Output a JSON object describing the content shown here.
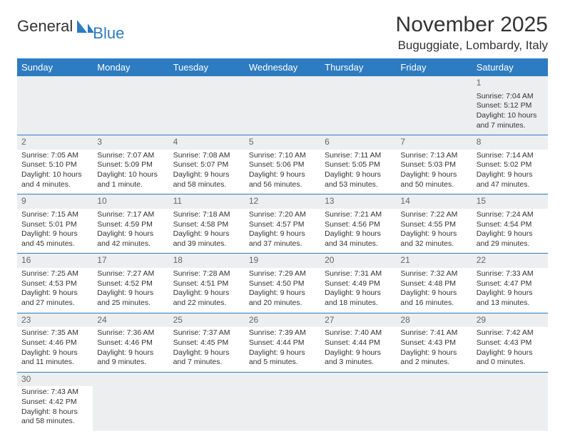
{
  "brand": {
    "part1": "General",
    "part2": "Blue"
  },
  "title": "November 2025",
  "location": "Buguggiate, Lombardy, Italy",
  "colors": {
    "header_bg": "#2d7bc0",
    "header_fg": "#ffffff",
    "rule": "#2d7bc0",
    "daynum_bg": "#eceef0",
    "text": "#333333"
  },
  "weekdays": [
    "Sunday",
    "Monday",
    "Tuesday",
    "Wednesday",
    "Thursday",
    "Friday",
    "Saturday"
  ],
  "grid": [
    [
      null,
      null,
      null,
      null,
      null,
      null,
      {
        "n": "1",
        "sunrise": "Sunrise: 7:04 AM",
        "sunset": "Sunset: 5:12 PM",
        "day1": "Daylight: 10 hours",
        "day2": "and 7 minutes."
      }
    ],
    [
      {
        "n": "2",
        "sunrise": "Sunrise: 7:05 AM",
        "sunset": "Sunset: 5:10 PM",
        "day1": "Daylight: 10 hours",
        "day2": "and 4 minutes."
      },
      {
        "n": "3",
        "sunrise": "Sunrise: 7:07 AM",
        "sunset": "Sunset: 5:09 PM",
        "day1": "Daylight: 10 hours",
        "day2": "and 1 minute."
      },
      {
        "n": "4",
        "sunrise": "Sunrise: 7:08 AM",
        "sunset": "Sunset: 5:07 PM",
        "day1": "Daylight: 9 hours",
        "day2": "and 58 minutes."
      },
      {
        "n": "5",
        "sunrise": "Sunrise: 7:10 AM",
        "sunset": "Sunset: 5:06 PM",
        "day1": "Daylight: 9 hours",
        "day2": "and 56 minutes."
      },
      {
        "n": "6",
        "sunrise": "Sunrise: 7:11 AM",
        "sunset": "Sunset: 5:05 PM",
        "day1": "Daylight: 9 hours",
        "day2": "and 53 minutes."
      },
      {
        "n": "7",
        "sunrise": "Sunrise: 7:13 AM",
        "sunset": "Sunset: 5:03 PM",
        "day1": "Daylight: 9 hours",
        "day2": "and 50 minutes."
      },
      {
        "n": "8",
        "sunrise": "Sunrise: 7:14 AM",
        "sunset": "Sunset: 5:02 PM",
        "day1": "Daylight: 9 hours",
        "day2": "and 47 minutes."
      }
    ],
    [
      {
        "n": "9",
        "sunrise": "Sunrise: 7:15 AM",
        "sunset": "Sunset: 5:01 PM",
        "day1": "Daylight: 9 hours",
        "day2": "and 45 minutes."
      },
      {
        "n": "10",
        "sunrise": "Sunrise: 7:17 AM",
        "sunset": "Sunset: 4:59 PM",
        "day1": "Daylight: 9 hours",
        "day2": "and 42 minutes."
      },
      {
        "n": "11",
        "sunrise": "Sunrise: 7:18 AM",
        "sunset": "Sunset: 4:58 PM",
        "day1": "Daylight: 9 hours",
        "day2": "and 39 minutes."
      },
      {
        "n": "12",
        "sunrise": "Sunrise: 7:20 AM",
        "sunset": "Sunset: 4:57 PM",
        "day1": "Daylight: 9 hours",
        "day2": "and 37 minutes."
      },
      {
        "n": "13",
        "sunrise": "Sunrise: 7:21 AM",
        "sunset": "Sunset: 4:56 PM",
        "day1": "Daylight: 9 hours",
        "day2": "and 34 minutes."
      },
      {
        "n": "14",
        "sunrise": "Sunrise: 7:22 AM",
        "sunset": "Sunset: 4:55 PM",
        "day1": "Daylight: 9 hours",
        "day2": "and 32 minutes."
      },
      {
        "n": "15",
        "sunrise": "Sunrise: 7:24 AM",
        "sunset": "Sunset: 4:54 PM",
        "day1": "Daylight: 9 hours",
        "day2": "and 29 minutes."
      }
    ],
    [
      {
        "n": "16",
        "sunrise": "Sunrise: 7:25 AM",
        "sunset": "Sunset: 4:53 PM",
        "day1": "Daylight: 9 hours",
        "day2": "and 27 minutes."
      },
      {
        "n": "17",
        "sunrise": "Sunrise: 7:27 AM",
        "sunset": "Sunset: 4:52 PM",
        "day1": "Daylight: 9 hours",
        "day2": "and 25 minutes."
      },
      {
        "n": "18",
        "sunrise": "Sunrise: 7:28 AM",
        "sunset": "Sunset: 4:51 PM",
        "day1": "Daylight: 9 hours",
        "day2": "and 22 minutes."
      },
      {
        "n": "19",
        "sunrise": "Sunrise: 7:29 AM",
        "sunset": "Sunset: 4:50 PM",
        "day1": "Daylight: 9 hours",
        "day2": "and 20 minutes."
      },
      {
        "n": "20",
        "sunrise": "Sunrise: 7:31 AM",
        "sunset": "Sunset: 4:49 PM",
        "day1": "Daylight: 9 hours",
        "day2": "and 18 minutes."
      },
      {
        "n": "21",
        "sunrise": "Sunrise: 7:32 AM",
        "sunset": "Sunset: 4:48 PM",
        "day1": "Daylight: 9 hours",
        "day2": "and 16 minutes."
      },
      {
        "n": "22",
        "sunrise": "Sunrise: 7:33 AM",
        "sunset": "Sunset: 4:47 PM",
        "day1": "Daylight: 9 hours",
        "day2": "and 13 minutes."
      }
    ],
    [
      {
        "n": "23",
        "sunrise": "Sunrise: 7:35 AM",
        "sunset": "Sunset: 4:46 PM",
        "day1": "Daylight: 9 hours",
        "day2": "and 11 minutes."
      },
      {
        "n": "24",
        "sunrise": "Sunrise: 7:36 AM",
        "sunset": "Sunset: 4:46 PM",
        "day1": "Daylight: 9 hours",
        "day2": "and 9 minutes."
      },
      {
        "n": "25",
        "sunrise": "Sunrise: 7:37 AM",
        "sunset": "Sunset: 4:45 PM",
        "day1": "Daylight: 9 hours",
        "day2": "and 7 minutes."
      },
      {
        "n": "26",
        "sunrise": "Sunrise: 7:39 AM",
        "sunset": "Sunset: 4:44 PM",
        "day1": "Daylight: 9 hours",
        "day2": "and 5 minutes."
      },
      {
        "n": "27",
        "sunrise": "Sunrise: 7:40 AM",
        "sunset": "Sunset: 4:44 PM",
        "day1": "Daylight: 9 hours",
        "day2": "and 3 minutes."
      },
      {
        "n": "28",
        "sunrise": "Sunrise: 7:41 AM",
        "sunset": "Sunset: 4:43 PM",
        "day1": "Daylight: 9 hours",
        "day2": "and 2 minutes."
      },
      {
        "n": "29",
        "sunrise": "Sunrise: 7:42 AM",
        "sunset": "Sunset: 4:43 PM",
        "day1": "Daylight: 9 hours",
        "day2": "and 0 minutes."
      }
    ],
    [
      {
        "n": "30",
        "sunrise": "Sunrise: 7:43 AM",
        "sunset": "Sunset: 4:42 PM",
        "day1": "Daylight: 8 hours",
        "day2": "and 58 minutes."
      },
      null,
      null,
      null,
      null,
      null,
      null
    ]
  ]
}
